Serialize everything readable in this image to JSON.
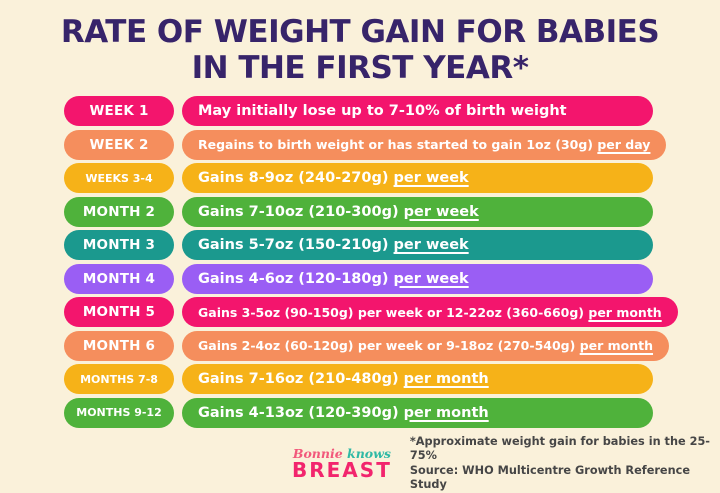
{
  "title": {
    "line1": "RATE OF WEIGHT GAIN FOR BABIES",
    "line2": "IN THE FIRST YEAR*"
  },
  "rows": [
    {
      "label": "WEEK 1",
      "text": "May initially lose up to 7-10% of birth weight",
      "underlined": "",
      "color": "#f3156d"
    },
    {
      "label": "WEEK 2",
      "text": "Regains to birth weight or has started to gain 1oz (30g) ",
      "underlined": "per day",
      "color": "#f58e5d"
    },
    {
      "label": "WEEKS 3-4",
      "text": "Gains 8-9oz (240-270g) ",
      "underlined": "per week",
      "color": "#f6b218"
    },
    {
      "label": "MONTH 2",
      "text": "Gains 7-10oz (210-300g) ",
      "underlined": "per week",
      "color": "#4fb23b"
    },
    {
      "label": "MONTH 3",
      "text": "Gains 5-7oz (150-210g) ",
      "underlined": "per week",
      "color": "#1b998e"
    },
    {
      "label": "MONTH 4",
      "text": "Gains 4-6oz (120-180g) ",
      "underlined": "per week",
      "color": "#9a5ef4"
    },
    {
      "label": "MONTH 5",
      "text": "Gains 3-5oz (90-150g) per week or 12-22oz (360-660g) ",
      "underlined": "per month",
      "color": "#f3156d"
    },
    {
      "label": "MONTH 6",
      "text": "Gains 2-4oz (60-120g) per week or 9-18oz (270-540g) ",
      "underlined": "per month",
      "color": "#f58e5d"
    },
    {
      "label": "MONTHS 7-8",
      "text": "Gains 7-16oz (210-480g) ",
      "underlined": "per month",
      "color": "#f6b218"
    },
    {
      "label": "MONTHS 9-12",
      "text": "Gains 4-13oz (120-390g) ",
      "underlined": "per month",
      "color": "#4fb23b"
    }
  ],
  "footer": {
    "brand_script_1": "Bonnie ",
    "brand_script_2": "knows",
    "brand_name": "BREAST",
    "note_line1": "*Approximate weight gain for babies in the 25-75%",
    "note_line2": "Source: WHO Multicentre Growth Reference Study"
  },
  "colors": {
    "background": "#faf1da",
    "title": "#37246a",
    "pink": "#f3156d",
    "orange": "#f58e5d",
    "amber": "#f6b218",
    "green": "#4fb23b",
    "teal": "#1b998e",
    "purple": "#9a5ef4",
    "brand_pink": "#f2256d",
    "brand_teal": "#2fb9a5"
  }
}
